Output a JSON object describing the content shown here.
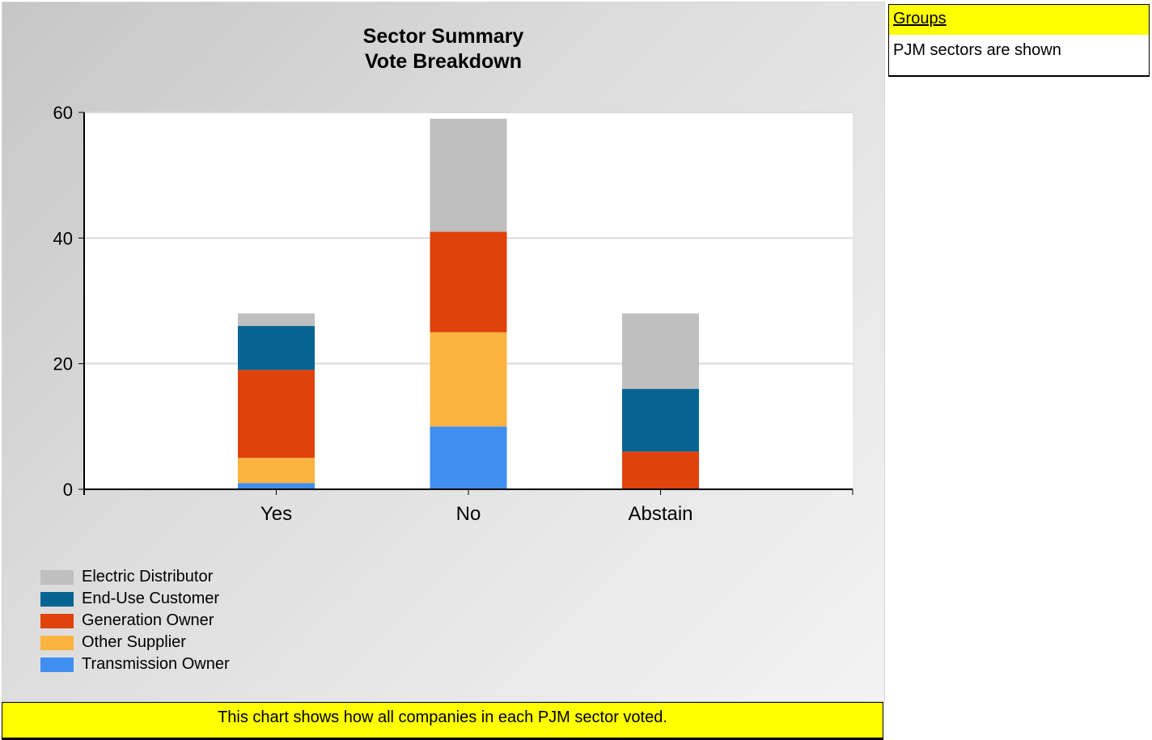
{
  "colors": {
    "electric_distributor": "#bfbfbf",
    "end_use_customer": "#066493",
    "generation_owner": "#e0420c",
    "other_supplier": "#fbb440",
    "transmission_owner": "#3f8ef0",
    "panel_background": "#dedede",
    "highlight": "#ffff00"
  },
  "chart_data": {
    "type": "bar",
    "stacked": true,
    "title": "Sector Summary\nVote Breakdown",
    "title_lines": [
      "Sector Summary",
      "Vote Breakdown"
    ],
    "xlabel": "",
    "ylabel": "",
    "categories": [
      "Yes",
      "No",
      "Abstain"
    ],
    "ylim": [
      0,
      60
    ],
    "yticks": [
      0,
      20,
      40,
      60
    ],
    "grid": true,
    "legend_position": "bottom-left",
    "series": [
      {
        "name": "Transmission Owner",
        "color_key": "transmission_owner",
        "values": [
          1,
          10,
          0
        ]
      },
      {
        "name": "Other Supplier",
        "color_key": "other_supplier",
        "values": [
          4,
          15,
          0
        ]
      },
      {
        "name": "Generation Owner",
        "color_key": "generation_owner",
        "values": [
          14,
          16,
          6
        ]
      },
      {
        "name": "End-Use Customer",
        "color_key": "end_use_customer",
        "values": [
          7,
          0,
          10
        ]
      },
      {
        "name": "Electric Distributor",
        "color_key": "electric_distributor",
        "values": [
          2,
          18,
          12
        ]
      }
    ],
    "legend": [
      {
        "name": "Electric Distributor",
        "color_key": "electric_distributor"
      },
      {
        "name": "End-Use Customer",
        "color_key": "end_use_customer"
      },
      {
        "name": "Generation Owner",
        "color_key": "generation_owner"
      },
      {
        "name": "Other Supplier",
        "color_key": "other_supplier"
      },
      {
        "name": "Transmission Owner",
        "color_key": "transmission_owner"
      }
    ]
  },
  "footer": {
    "note": "This chart shows how all companies in each PJM sector voted."
  },
  "groups": {
    "header": "Groups",
    "text": "PJM sectors are shown"
  }
}
